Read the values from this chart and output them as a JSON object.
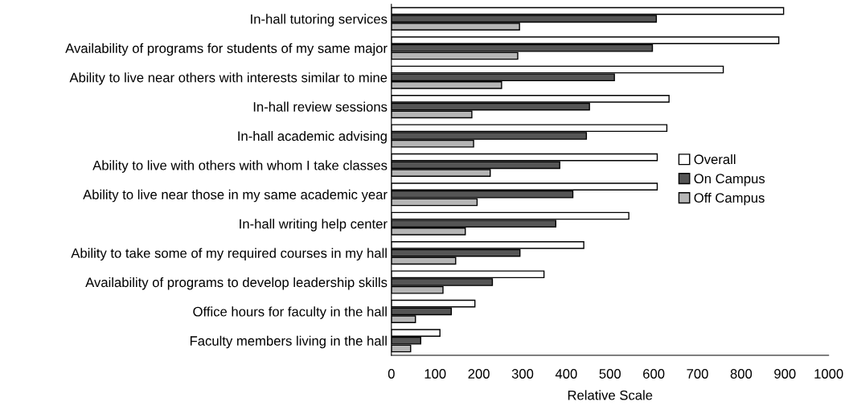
{
  "chart_data": {
    "type": "bar",
    "orientation": "horizontal",
    "xlabel": "Relative Scale",
    "categories": [
      "In-hall tutoring services",
      "Availability of programs for students of my same major",
      "Ability to live near others with interests similar to mine",
      "In-hall review sessions",
      "In-hall academic advising",
      "Ability to live with others with whom I take classes",
      "Ability to live near those in my same academic year",
      "In-hall writing help center",
      "Ability to take some of my required courses in my hall",
      "Availability of programs to develop leadership skills",
      "Office hours for faculty in the hall",
      "Faculty members living in the hall"
    ],
    "series": [
      {
        "name": "Overall",
        "color": "#ffffff",
        "values": [
          897,
          886,
          759,
          635,
          630,
          608,
          608,
          543,
          440,
          349,
          191,
          111
        ]
      },
      {
        "name": "On Campus",
        "color": "#555555",
        "values": [
          606,
          597,
          510,
          453,
          446,
          385,
          415,
          376,
          294,
          231,
          137,
          67
        ]
      },
      {
        "name": "Off Campus",
        "color": "#b5b5b5",
        "values": [
          293,
          289,
          252,
          184,
          188,
          226,
          196,
          169,
          147,
          118,
          55,
          44
        ]
      }
    ],
    "xlim": [
      0,
      1000
    ],
    "xticks": [
      0,
      100,
      200,
      300,
      400,
      500,
      600,
      700,
      800,
      900,
      1000
    ],
    "grid": false,
    "legend": "right"
  }
}
